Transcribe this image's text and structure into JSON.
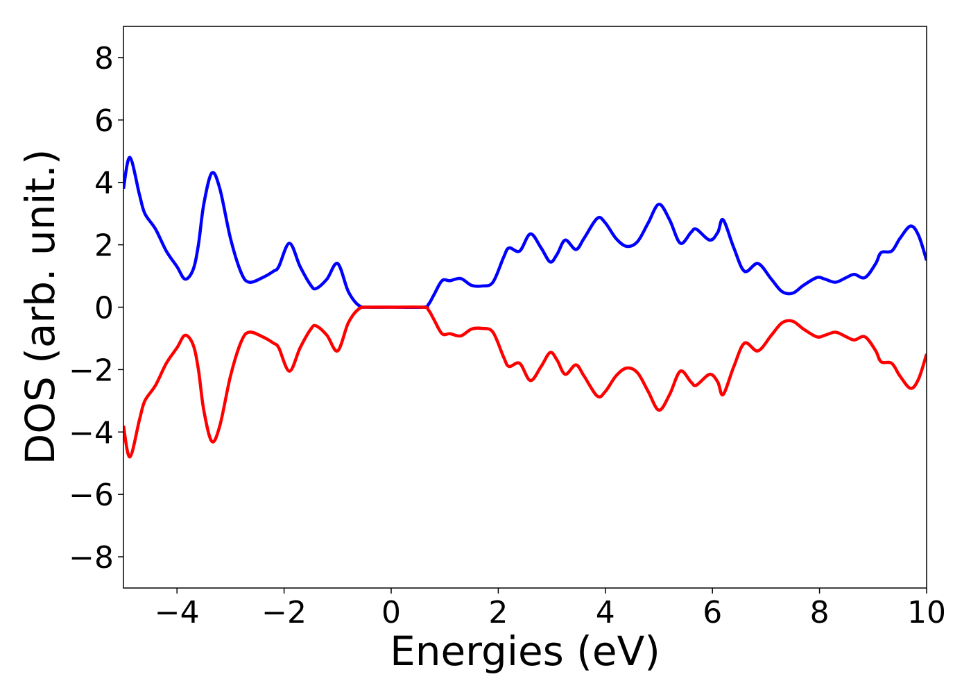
{
  "chart_data": {
    "type": "line",
    "xlabel": "Energies (eV)",
    "ylabel": "DOS (arb. unit.)",
    "x": [
      -5,
      -4.88,
      -4.7,
      -4.6,
      -4.4,
      -4.2,
      -4.0,
      -3.85,
      -3.7,
      -3.6,
      -3.5,
      -3.35,
      -3.2,
      -3.0,
      -2.8,
      -2.65,
      -2.4,
      -2.2,
      -2.1,
      -1.9,
      -1.7,
      -1.5,
      -1.4,
      -1.2,
      -1.0,
      -0.8,
      -0.6,
      -0.4,
      0,
      0.6,
      0.7,
      0.8,
      0.95,
      1.1,
      1.3,
      1.5,
      1.7,
      1.9,
      2.1,
      2.2,
      2.4,
      2.6,
      2.8,
      2.97,
      3.1,
      3.25,
      3.45,
      3.6,
      3.85,
      4.0,
      4.2,
      4.4,
      4.6,
      4.8,
      5.0,
      5.2,
      5.4,
      5.6,
      5.7,
      5.95,
      6.1,
      6.2,
      6.4,
      6.6,
      6.85,
      7.1,
      7.3,
      7.5,
      7.7,
      7.95,
      8.1,
      8.3,
      8.5,
      8.65,
      8.85,
      9.05,
      9.15,
      9.35,
      9.5,
      9.7,
      9.85,
      10
    ],
    "series": [
      {
        "color": "#0000ff",
        "values": [
          3.8,
          4.8,
          3.6,
          3.0,
          2.5,
          1.8,
          1.3,
          0.9,
          1.2,
          2.0,
          3.3,
          4.3,
          3.8,
          2.2,
          1.1,
          0.8,
          0.95,
          1.15,
          1.3,
          2.05,
          1.3,
          0.7,
          0.6,
          0.9,
          1.4,
          0.5,
          0.05,
          0,
          0,
          0,
          0.1,
          0.4,
          0.85,
          0.85,
          0.92,
          0.7,
          0.68,
          0.8,
          1.6,
          1.9,
          1.8,
          2.35,
          1.9,
          1.45,
          1.7,
          2.15,
          1.85,
          2.2,
          2.85,
          2.7,
          2.2,
          1.95,
          2.1,
          2.7,
          3.3,
          2.8,
          2.05,
          2.4,
          2.5,
          2.15,
          2.4,
          2.8,
          1.9,
          1.15,
          1.4,
          0.9,
          0.5,
          0.45,
          0.7,
          0.95,
          0.9,
          0.8,
          0.95,
          1.05,
          0.95,
          1.4,
          1.75,
          1.8,
          2.2,
          2.6,
          2.3,
          1.5
        ]
      },
      {
        "color": "#ff0000",
        "values": [
          -3.8,
          -4.8,
          -3.6,
          -3.0,
          -2.5,
          -1.8,
          -1.3,
          -0.9,
          -1.2,
          -2.0,
          -3.3,
          -4.3,
          -3.8,
          -2.2,
          -1.1,
          -0.8,
          -0.95,
          -1.15,
          -1.3,
          -2.05,
          -1.3,
          -0.7,
          -0.6,
          -0.9,
          -1.4,
          -0.5,
          -0.05,
          0,
          0,
          0,
          -0.1,
          -0.4,
          -0.85,
          -0.85,
          -0.92,
          -0.7,
          -0.68,
          -0.8,
          -1.6,
          -1.9,
          -1.8,
          -2.35,
          -1.9,
          -1.45,
          -1.7,
          -2.15,
          -1.85,
          -2.2,
          -2.85,
          -2.7,
          -2.2,
          -1.95,
          -2.1,
          -2.7,
          -3.3,
          -2.8,
          -2.05,
          -2.4,
          -2.5,
          -2.15,
          -2.4,
          -2.8,
          -1.9,
          -1.15,
          -1.4,
          -0.9,
          -0.5,
          -0.45,
          -0.7,
          -0.95,
          -0.9,
          -0.8,
          -0.95,
          -1.05,
          -0.95,
          -1.4,
          -1.75,
          -1.8,
          -2.2,
          -2.6,
          -2.3,
          -1.5
        ]
      }
    ],
    "xlim": [
      -5,
      10
    ],
    "xticks": [
      {
        "value": -4,
        "label": "−4"
      },
      {
        "value": -2,
        "label": "−2"
      },
      0,
      2,
      4,
      6,
      8,
      10
    ],
    "ylim": [
      -9,
      9
    ],
    "yticks": [
      {
        "value": -8,
        "label": "−8"
      },
      {
        "value": -6,
        "label": "−6"
      },
      {
        "value": -4,
        "label": "−4"
      },
      {
        "value": -2,
        "label": "−2"
      },
      0,
      2,
      4,
      6,
      8
    ]
  }
}
